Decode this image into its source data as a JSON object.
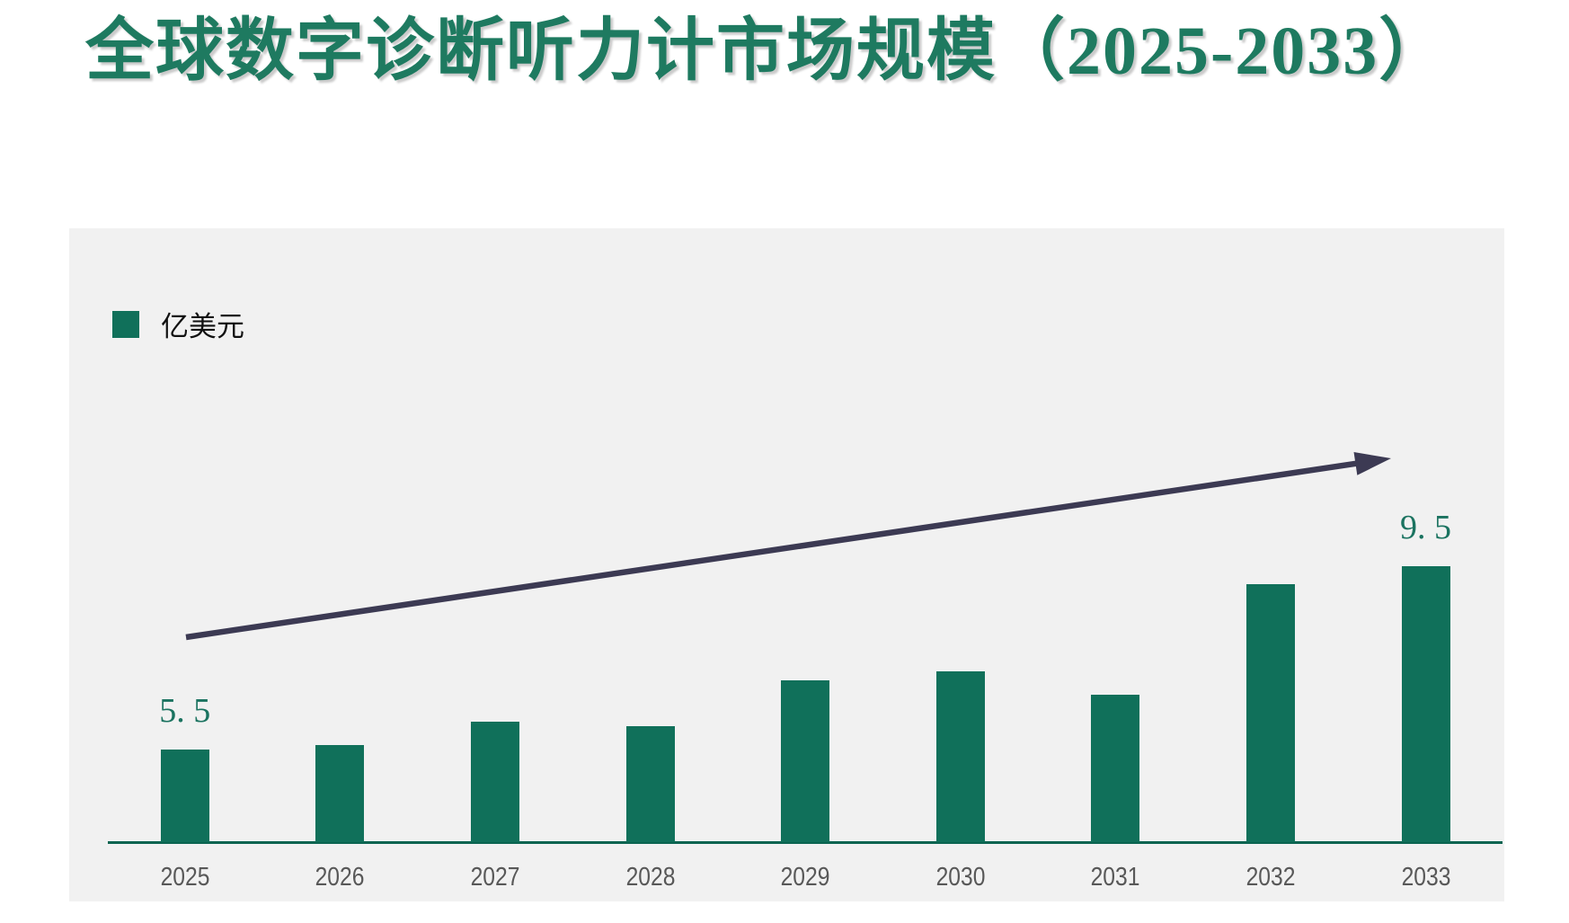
{
  "title": {
    "text": "全球数字诊断听力计市场规模（2025-2033）"
  },
  "legend": {
    "label": "亿美元"
  },
  "chart_data": {
    "type": "bar",
    "title": "全球数字诊断听力计市场规模（2025-2033）",
    "categories": [
      "2025",
      "2026",
      "2027",
      "2028",
      "2029",
      "2030",
      "2031",
      "2032",
      "2033"
    ],
    "values": [
      5.5,
      5.6,
      6.1,
      6.0,
      7.0,
      7.2,
      6.7,
      9.1,
      9.5
    ],
    "data_labels": [
      "5. 5",
      "",
      "",
      "",
      "",
      "",
      "",
      "",
      "9. 5"
    ],
    "series_name": "亿美元",
    "xlabel": "",
    "ylabel": "",
    "y_baseline": 3.48,
    "ylim": [
      3.48,
      9.5
    ],
    "grid": false,
    "legend_position": "top-left",
    "annotations": [
      {
        "name": "trend-arrow",
        "direction": "up",
        "from_category": "2025",
        "to_category": "2033"
      }
    ]
  },
  "style": {
    "title_color": "#1E7A60",
    "bar_color": "#10705A",
    "axis_color": "#0A6450",
    "panel_bg": "#F1F1F1",
    "value_label_color": "#1B7360",
    "tick_color": "#585858",
    "arrow_color": "#3C3A53"
  }
}
